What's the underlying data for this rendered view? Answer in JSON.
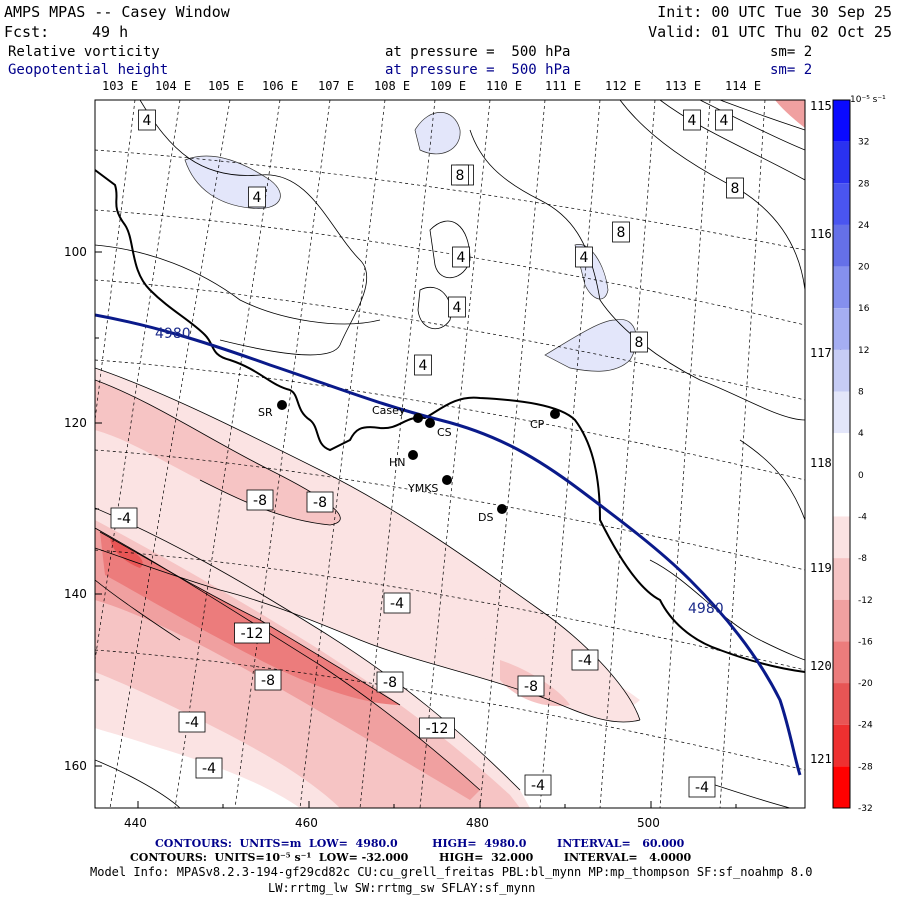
{
  "header": {
    "title": "AMPS MPAS -- Casey Window",
    "init": "Init: 00 UTC Tue 30 Sep 25",
    "fcst_label": "Fcst:",
    "fcst_value": "49 h",
    "valid": "Valid: 01 UTC Thu 02 Oct 25",
    "field1_name": "Relative vorticity",
    "field1_level": "at pressure =  500 hPa",
    "field1_sm": "sm= 2",
    "field2_name": "Geopotential height",
    "field2_level": "at pressure =  500 hPa",
    "field2_sm": "sm= 2"
  },
  "top_lon_labels": [
    "103 E",
    "104 E",
    "105 E",
    "106 E",
    "107 E",
    "108 E",
    "109 E",
    "110 E",
    "111 E",
    "112 E",
    "113 E",
    "114 E",
    "115 E"
  ],
  "right_lon_labels": [
    "116 E",
    "117 E",
    "118 E",
    "119 E",
    "120 E",
    "121 E"
  ],
  "y_ticks": [
    "100",
    "120",
    "140",
    "160"
  ],
  "x_ticks": [
    "440",
    "460",
    "480",
    "500"
  ],
  "stations": [
    {
      "name": "SR"
    },
    {
      "name": "Casey"
    },
    {
      "name": "CS"
    },
    {
      "name": "CP"
    },
    {
      "name": "HN"
    },
    {
      "name": "YMKS"
    },
    {
      "name": "DS"
    }
  ],
  "height_contour_label": "4980",
  "vorticity_contour_labels": [
    "4",
    "4",
    "4",
    "4",
    "4",
    "8",
    "8",
    "4",
    "4",
    "4",
    "4",
    "8",
    "8",
    "-8",
    "-8",
    "-4",
    "-4",
    "-12",
    "-8",
    "-8",
    "-4",
    "-8",
    "-12",
    "-4",
    "-4",
    "-4",
    "-4"
  ],
  "colorbar": {
    "unit": "10⁻⁵ s⁻¹",
    "labels": [
      "32",
      "28",
      "24",
      "20",
      "16",
      "12",
      "8",
      "4",
      "0",
      "-4",
      "-8",
      "-12",
      "-16",
      "-20",
      "-24",
      "-28",
      "-32"
    ],
    "colors": [
      "#0a0aff",
      "#2a32f0",
      "#4a55f0",
      "#6570e8",
      "#8590ee",
      "#a5aef2",
      "#c6ccf5",
      "#e3e6fa",
      "#ffffff",
      "#ffffff",
      "#fbe3e3",
      "#f6c4c4",
      "#f0a0a0",
      "#ec7c7c",
      "#e85555",
      "#ee3030",
      "#ff0000"
    ]
  },
  "footer": {
    "line1": "CONTOURS:  UNITS=m  LOW=  4980.0         HIGH=  4980.0        INTERVAL=   60.000",
    "line2": "CONTOURS:  UNITS=10⁻⁵ s⁻¹  LOW= -32.000        HIGH=  32.000        INTERVAL=   4.0000",
    "line3": "Model Info: MPASv8.2.3-194-gf29cd82c CU:cu_grell_freitas PBL:bl_mynn MP:mp_thompson SF:sf_noahmp 8.0",
    "line4": "LW:rrtmg_lw SW:rrtmg_sw SFLAY:sf_mynn"
  }
}
